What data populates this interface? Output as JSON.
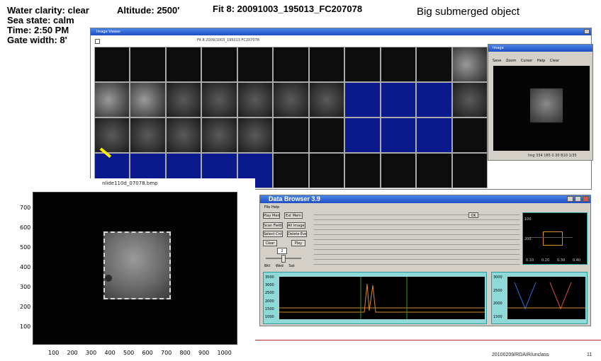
{
  "slide": {
    "info_lines": [
      "Water clarity:  clear",
      "Sea state:  calm",
      "Time: 2:50  PM",
      "Gate width:  8'"
    ],
    "altitude": "Altitude:  2500'",
    "fit_title": "Fit 8: 20091003_195013_FC207078",
    "object_title": "Big submerged object",
    "footer_date": "20100209/RDAIR/unclass",
    "page_number": "11"
  },
  "left_image": {
    "caption": "nlide110d_07078.bmp",
    "y_ticks": [
      "700",
      "600",
      "500",
      "400",
      "300",
      "200",
      "100"
    ],
    "x_ticks": [
      "100",
      "200",
      "300",
      "400",
      "500",
      "600",
      "700",
      "800",
      "900",
      "1000"
    ]
  },
  "data_browser": {
    "title": "Data Browser 3.9",
    "menu": "File  Help",
    "buttons": [
      "Play Mem",
      "Ext Mem",
      "Scan Fields",
      "All Images",
      "Select Cnt2",
      "Delete Event",
      "Clear",
      "Play"
    ],
    "spinner_value": "2",
    "radio_labels": [
      "Bkt",
      "Wed",
      "Sat"
    ],
    "status_ok": "OK",
    "mini_plot": {
      "y_ticks": [
        "100",
        "200"
      ],
      "x_ticks": [
        "0.10",
        "0.20",
        "0.30",
        "0.40"
      ]
    },
    "plot_main": {
      "y_ticks": [
        "3500",
        "3000",
        "2500",
        "2000",
        "1500",
        "1000"
      ]
    },
    "plot_right": {
      "y_ticks": [
        "3000",
        "2500",
        "2000",
        "1500"
      ]
    }
  },
  "tile_viewer": {
    "title": "Image Viewer",
    "subtitle": "Fit 8 2009/1003_195013 FC207078"
  },
  "preview_window": {
    "title": "Image",
    "toolbar": [
      "Save",
      "Zoom",
      "Cursor",
      "Help",
      "Clear"
    ],
    "status": "Img 334 185 0.30 B10 1/35"
  },
  "colors": {
    "tile_blue": "#0a1a8c",
    "title_blue": "#2c5fd6",
    "plot_cyan": "#8fd9d9",
    "footer_red": "#c0202a",
    "arrow_yellow": "#ffee00"
  }
}
